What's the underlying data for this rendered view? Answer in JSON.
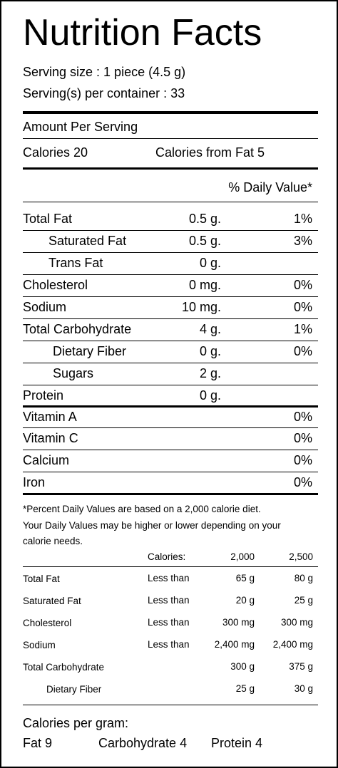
{
  "title": "Nutrition Facts",
  "serving_size": "Serving size : 1 piece (4.5 g)",
  "servings_per_container": "Serving(s) per container : 33",
  "amount_per_serving": "Amount Per Serving",
  "calories": "Calories 20",
  "calories_from_fat": "Calories from Fat 5",
  "daily_value_header": "% Daily Value*",
  "nutrients": [
    {
      "name": "Total Fat",
      "amount": "0.5 g.",
      "dv": "1%"
    },
    {
      "name": "Saturated Fat",
      "amount": "0.5 g.",
      "dv": "3%"
    },
    {
      "name": "Trans Fat",
      "amount": "0 g.",
      "dv": ""
    },
    {
      "name": "Cholesterol",
      "amount": "0 mg.",
      "dv": "0%"
    },
    {
      "name": "Sodium",
      "amount": "10 mg.",
      "dv": "0%"
    },
    {
      "name": "Total Carbohydrate",
      "amount": "4 g.",
      "dv": "1%"
    },
    {
      "name": "Dietary Fiber",
      "amount": "0 g.",
      "dv": "0%"
    },
    {
      "name": "Sugars",
      "amount": "2 g.",
      "dv": ""
    },
    {
      "name": "Protein",
      "amount": "0 g.",
      "dv": ""
    }
  ],
  "vitamins": [
    {
      "name": "Vitamin A",
      "dv": "0%"
    },
    {
      "name": "Vitamin C",
      "dv": "0%"
    },
    {
      "name": "Calcium",
      "dv": "0%"
    },
    {
      "name": "Iron",
      "dv": "0%"
    }
  ],
  "footnote": [
    "*Percent Daily Values are based on a 2,000 calorie diet.",
    "Your Daily Values may be higher or lower depending on your",
    "calorie needs."
  ],
  "ref_header": {
    "label": "Calories:",
    "c1": "2,000",
    "c2": "2,500"
  },
  "ref_rows": [
    {
      "name": "Total Fat",
      "limit": "Less than",
      "c1": "65 g",
      "c2": "80 g"
    },
    {
      "name": "Saturated Fat",
      "limit": "Less than",
      "c1": "20 g",
      "c2": "25 g"
    },
    {
      "name": "Cholesterol",
      "limit": "Less than",
      "c1": "300 mg",
      "c2": "300 mg"
    },
    {
      "name": "Sodium",
      "limit": "Less than",
      "c1": "2,400 mg",
      "c2": "2,400 mg"
    },
    {
      "name": "Total Carbohydrate",
      "limit": "",
      "c1": "300 g",
      "c2": "375 g"
    },
    {
      "name": "Dietary Fiber",
      "limit": "",
      "c1": "25 g",
      "c2": "30 g"
    }
  ],
  "calories_per_gram": "Calories per gram:",
  "per_gram": {
    "fat": "Fat 9",
    "carb": "Carbohydrate 4",
    "protein": "Protein 4"
  }
}
